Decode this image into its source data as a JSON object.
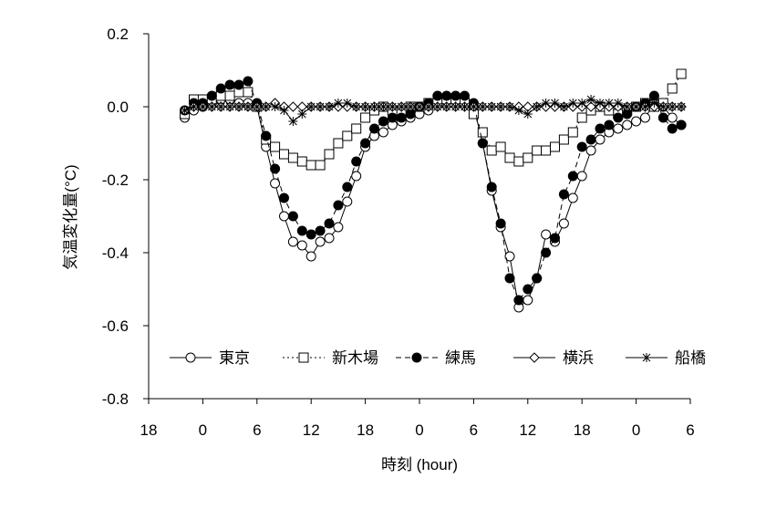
{
  "chart_data": {
    "type": "line",
    "title": "",
    "xlabel": "時刻 (hour)",
    "ylabel": "気温変化量(°C)",
    "ylim": [
      -0.8,
      0.2
    ],
    "yticks": [
      "0.2",
      "0.0",
      "-0.2",
      "-0.4",
      "-0.6",
      "-0.8"
    ],
    "yticks_values": [
      0.2,
      0.0,
      -0.2,
      -0.4,
      -0.6,
      -0.8
    ],
    "xlim": [
      -6,
      54
    ],
    "xticks": [
      "18",
      "0",
      "6",
      "12",
      "18",
      "0",
      "6",
      "12",
      "18",
      "0",
      "6"
    ],
    "xticks_values": [
      -6,
      0,
      6,
      12,
      18,
      24,
      30,
      36,
      42,
      48,
      54
    ],
    "grid": false,
    "legend_position": "bottom",
    "x": [
      -2,
      -1,
      0,
      1,
      2,
      3,
      4,
      5,
      6,
      7,
      8,
      9,
      10,
      11,
      12,
      13,
      14,
      15,
      16,
      17,
      18,
      19,
      20,
      21,
      22,
      23,
      24,
      25,
      26,
      27,
      28,
      29,
      30,
      31,
      32,
      33,
      34,
      35,
      36,
      37,
      38,
      39,
      40,
      41,
      42,
      43,
      44,
      45,
      46,
      47,
      48,
      49,
      50,
      51,
      52,
      53
    ],
    "series": [
      {
        "name": "東京",
        "line": "solid",
        "marker": "circle-open",
        "values": [
          -0.03,
          -0.01,
          0.0,
          0.01,
          0.02,
          0.02,
          0.01,
          0.01,
          0.0,
          -0.11,
          -0.21,
          -0.3,
          -0.37,
          -0.38,
          -0.41,
          -0.37,
          -0.36,
          -0.33,
          -0.26,
          -0.19,
          -0.11,
          -0.08,
          -0.07,
          -0.05,
          -0.04,
          -0.03,
          -0.02,
          -0.01,
          0.01,
          0.02,
          0.02,
          0.02,
          0.0,
          -0.1,
          -0.23,
          -0.33,
          -0.41,
          -0.55,
          -0.53,
          -0.47,
          -0.35,
          -0.37,
          -0.32,
          -0.25,
          -0.19,
          -0.12,
          -0.09,
          -0.07,
          -0.06,
          -0.05,
          -0.04,
          -0.03,
          0.01,
          0.0,
          -0.03,
          -0.05
        ]
      },
      {
        "name": "新木場",
        "line": "dotted",
        "marker": "square-open",
        "values": [
          -0.02,
          0.02,
          0.02,
          0.02,
          0.03,
          0.03,
          0.04,
          0.04,
          0.0,
          -0.09,
          -0.11,
          -0.13,
          -0.14,
          -0.15,
          -0.16,
          -0.16,
          -0.13,
          -0.1,
          -0.08,
          -0.06,
          -0.03,
          -0.01,
          0.0,
          -0.01,
          -0.01,
          0.0,
          0.0,
          0.01,
          0.01,
          0.02,
          0.02,
          0.01,
          -0.02,
          -0.07,
          -0.12,
          -0.11,
          -0.14,
          -0.15,
          -0.14,
          -0.12,
          -0.12,
          -0.11,
          -0.09,
          -0.07,
          -0.03,
          -0.01,
          0.0,
          -0.01,
          -0.02,
          -0.01,
          0.0,
          0.01,
          0.0,
          0.01,
          0.05,
          0.09
        ]
      },
      {
        "name": "練馬",
        "line": "dashed",
        "marker": "circle-filled",
        "values": [
          -0.01,
          0.01,
          0.01,
          0.03,
          0.05,
          0.06,
          0.06,
          0.07,
          0.01,
          -0.08,
          -0.17,
          -0.25,
          -0.3,
          -0.34,
          -0.35,
          -0.34,
          -0.32,
          -0.27,
          -0.22,
          -0.15,
          -0.1,
          -0.06,
          -0.04,
          -0.03,
          -0.03,
          -0.02,
          0.0,
          0.01,
          0.03,
          0.03,
          0.03,
          0.03,
          0.01,
          -0.1,
          -0.22,
          -0.32,
          -0.47,
          -0.53,
          -0.5,
          -0.47,
          -0.4,
          -0.36,
          -0.24,
          -0.19,
          -0.11,
          -0.09,
          -0.06,
          -0.05,
          -0.03,
          -0.02,
          0.0,
          0.01,
          0.03,
          -0.03,
          -0.06,
          -0.05
        ]
      },
      {
        "name": "横浜",
        "line": "solid",
        "marker": "diamond-open",
        "values": [
          -0.01,
          0.0,
          0.0,
          0.0,
          0.0,
          0.0,
          0.0,
          0.0,
          0.0,
          0.0,
          0.01,
          0.0,
          0.0,
          0.0,
          0.0,
          0.0,
          0.0,
          0.0,
          0.0,
          0.0,
          0.0,
          0.0,
          0.0,
          0.0,
          0.0,
          0.0,
          0.0,
          0.0,
          0.0,
          0.0,
          0.0,
          0.0,
          0.0,
          0.0,
          0.0,
          0.0,
          0.0,
          0.0,
          0.0,
          0.0,
          0.0,
          0.0,
          0.0,
          0.0,
          0.0,
          0.0,
          0.0,
          0.0,
          0.0,
          0.0,
          0.0,
          0.0,
          0.0,
          0.0,
          0.0,
          0.0
        ]
      },
      {
        "name": "船橋",
        "line": "solid",
        "marker": "star",
        "values": [
          -0.01,
          0.0,
          0.0,
          0.0,
          0.0,
          0.0,
          0.0,
          0.0,
          0.0,
          0.0,
          0.0,
          -0.01,
          -0.04,
          -0.02,
          0.0,
          0.0,
          0.0,
          0.01,
          0.01,
          0.0,
          0.0,
          0.0,
          0.0,
          0.0,
          0.0,
          0.0,
          0.0,
          0.0,
          0.0,
          0.0,
          0.0,
          0.0,
          0.0,
          0.0,
          0.0,
          0.0,
          0.0,
          -0.01,
          -0.02,
          0.0,
          0.01,
          0.01,
          0.0,
          0.01,
          0.01,
          0.02,
          0.01,
          0.01,
          0.01,
          0.0,
          0.0,
          0.0,
          0.01,
          0.0,
          0.0,
          0.0
        ]
      }
    ]
  }
}
